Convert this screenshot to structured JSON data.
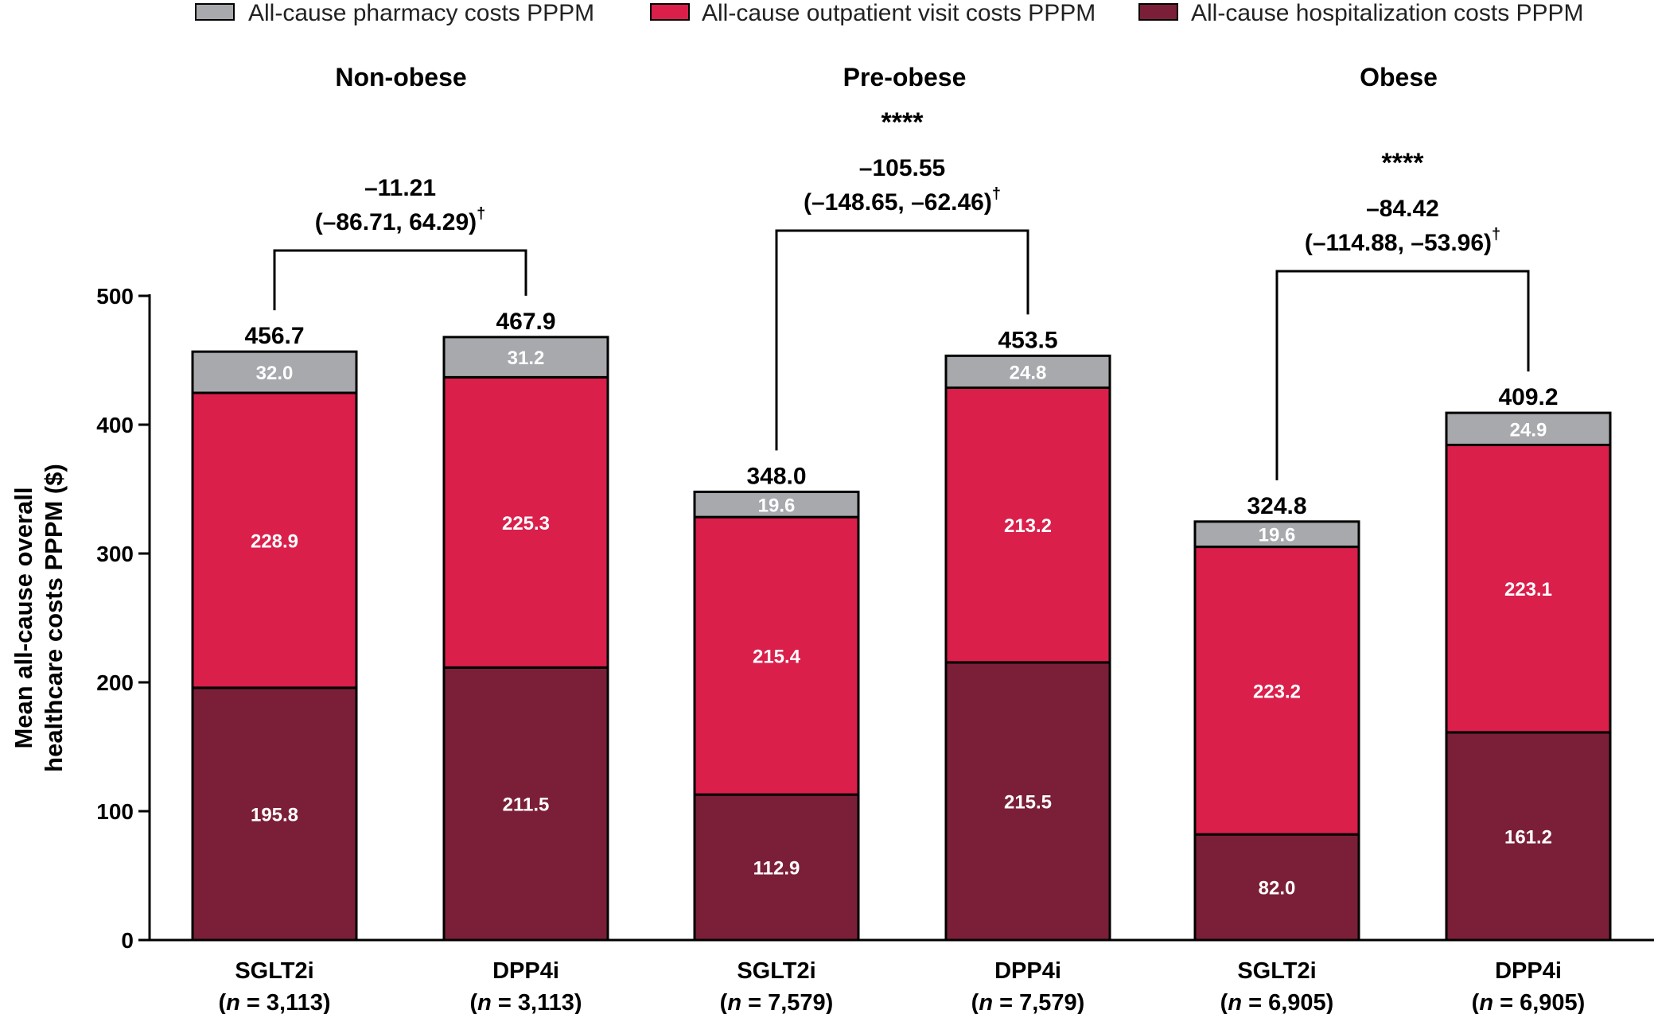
{
  "chart_data": {
    "type": "bar",
    "stacked": true,
    "ylabel_lines": [
      "Mean all-cause overall",
      "healthcare costs PPPM ($)"
    ],
    "ylim": [
      0,
      500
    ],
    "yticks": [
      0,
      100,
      200,
      300,
      400,
      500
    ],
    "legend": [
      {
        "name": "All-cause pharmacy costs PPPM",
        "color": "#a7a9ac"
      },
      {
        "name": "All-cause outpatient visit costs PPPM",
        "color": "#da1f4b"
      },
      {
        "name": "All-cause hospitalization costs PPPM",
        "color": "#7b1f38"
      }
    ],
    "groups": [
      {
        "title": "Non-obese",
        "bars": [
          {
            "label": "SGLT2i",
            "n_prefix": "(",
            "n_italic": "n",
            "n_suffix": " = 3,113)",
            "hospitalization": 195.8,
            "outpatient": 228.9,
            "pharmacy": 32.0,
            "hosp_label": "195.8",
            "outp_label": "228.9",
            "pharm_label": "32.0",
            "total_label": "456.7"
          },
          {
            "label": "DPP4i",
            "n_prefix": "(",
            "n_italic": "n",
            "n_suffix": " = 3,113)",
            "hospitalization": 211.5,
            "outpatient": 225.3,
            "pharmacy": 31.2,
            "hosp_label": "211.5",
            "outp_label": "225.3",
            "pharm_label": "31.2",
            "total_label": "467.9"
          }
        ],
        "comparison": {
          "stars": "",
          "diff": "–11.21",
          "ci": "(–86.71, 64.29)",
          "dagger": "†"
        }
      },
      {
        "title": "Pre-obese",
        "bars": [
          {
            "label": "SGLT2i",
            "n_prefix": "(",
            "n_italic": "n",
            "n_suffix": " = 7,579)",
            "hospitalization": 112.9,
            "outpatient": 215.4,
            "pharmacy": 19.6,
            "hosp_label": "112.9",
            "outp_label": "215.4",
            "pharm_label": "19.6",
            "total_label": "348.0"
          },
          {
            "label": "DPP4i",
            "n_prefix": "(",
            "n_italic": "n",
            "n_suffix": " = 7,579)",
            "hospitalization": 215.5,
            "outpatient": 213.2,
            "pharmacy": 24.8,
            "hosp_label": "215.5",
            "outp_label": "213.2",
            "pharm_label": "24.8",
            "total_label": "453.5"
          }
        ],
        "comparison": {
          "stars": "****",
          "diff": "–105.55",
          "ci": "(–148.65, –62.46)",
          "dagger": "†"
        }
      },
      {
        "title": "Obese",
        "bars": [
          {
            "label": "SGLT2i",
            "n_prefix": "(",
            "n_italic": "n",
            "n_suffix": " = 6,905)",
            "hospitalization": 82.0,
            "outpatient": 223.2,
            "pharmacy": 19.6,
            "hosp_label": "82.0",
            "outp_label": "223.2",
            "pharm_label": "19.6",
            "total_label": "324.8"
          },
          {
            "label": "DPP4i",
            "n_prefix": "(",
            "n_italic": "n",
            "n_suffix": " = 6,905)",
            "hospitalization": 161.2,
            "outpatient": 223.1,
            "pharmacy": 24.9,
            "hosp_label": "161.2",
            "outp_label": "223.1",
            "pharm_label": "24.9",
            "total_label": "409.2"
          }
        ],
        "comparison": {
          "stars": "****",
          "diff": "–84.42",
          "ci": "(–114.88, –53.96)",
          "dagger": "†"
        }
      }
    ]
  }
}
